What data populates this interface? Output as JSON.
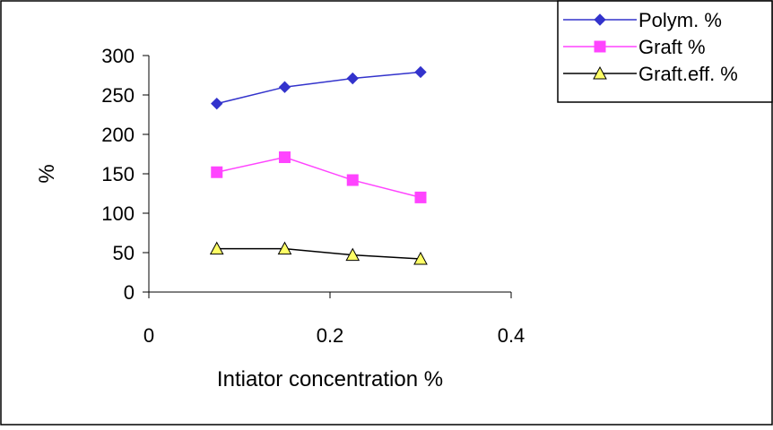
{
  "chart_data": {
    "type": "line",
    "title": "",
    "xlabel": "Intiator concentration %",
    "ylabel": "%",
    "xlim": [
      0,
      0.4
    ],
    "ylim": [
      0,
      300
    ],
    "x_ticks": [
      0,
      0.2,
      0.4
    ],
    "x_tick_labels": [
      "0",
      "0.2",
      "0.4"
    ],
    "y_ticks": [
      0,
      50,
      100,
      150,
      200,
      250,
      300
    ],
    "y_tick_labels": [
      "0",
      "50",
      "100",
      "150",
      "200",
      "250",
      "300"
    ],
    "grid": false,
    "legend_position": "top-right",
    "series": [
      {
        "name": "Polym. %",
        "color": "#3333cc",
        "marker": "diamond",
        "x": [
          0.075,
          0.15,
          0.225,
          0.3
        ],
        "y": [
          239,
          260,
          271,
          279
        ]
      },
      {
        "name": "Graft %",
        "color": "#ff44ff",
        "marker": "square",
        "x": [
          0.075,
          0.15,
          0.225,
          0.3
        ],
        "y": [
          152,
          171,
          142,
          120
        ]
      },
      {
        "name": "Graft.eff. %",
        "color": "#000000",
        "marker": "triangle",
        "marker_fill": "#ffff66",
        "x": [
          0.075,
          0.15,
          0.225,
          0.3
        ],
        "y": [
          55,
          55,
          47,
          42
        ]
      }
    ]
  }
}
